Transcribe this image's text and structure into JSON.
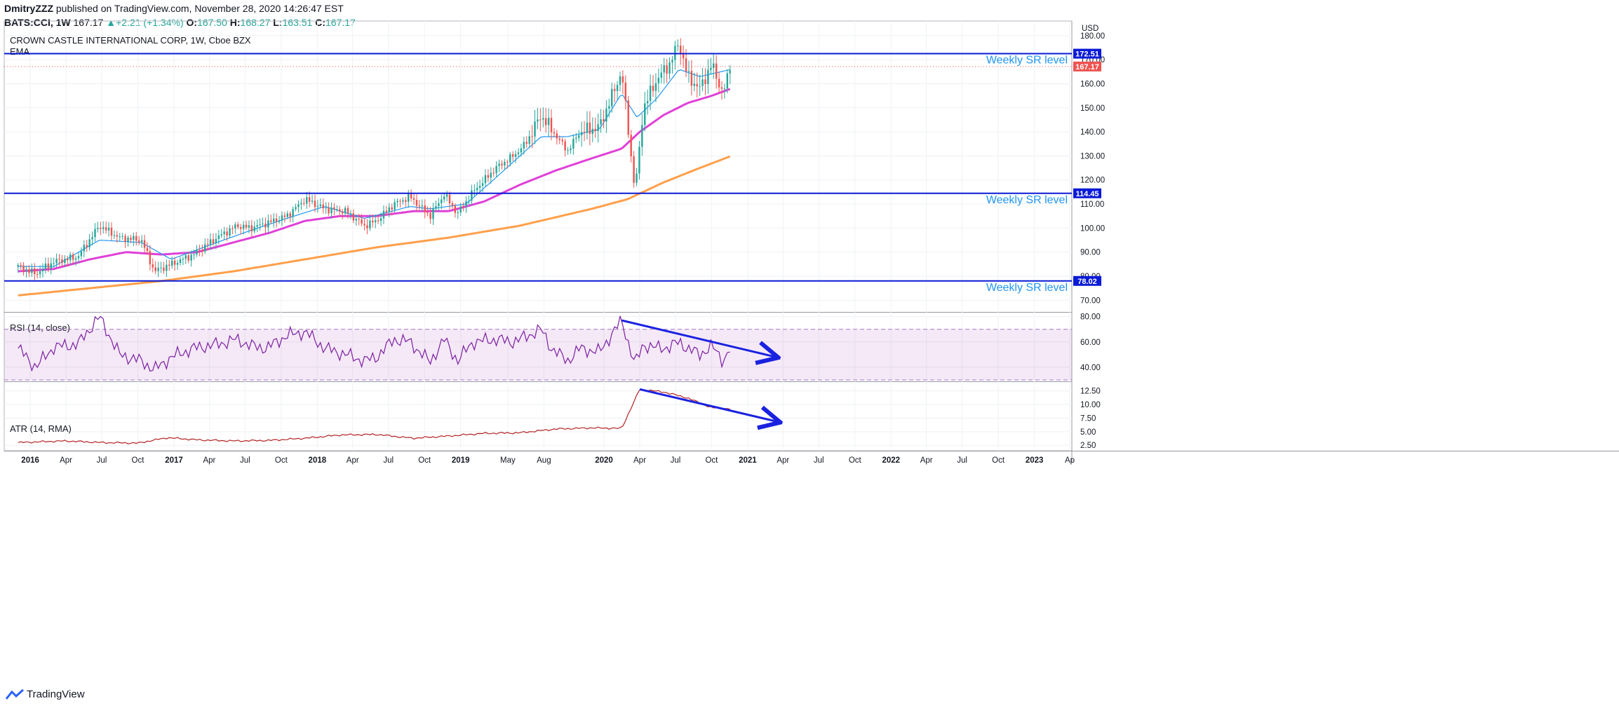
{
  "header": {
    "author": "DmitryZZZ",
    "published": "published on TradingView.com, November 28, 2020 14:26:47 EST",
    "symbol": "BATS:CCI, 1W",
    "last": "167.17",
    "change": "+2.21 (+1.34%)",
    "o_label": "O:",
    "o": "167.50",
    "h_label": "H:",
    "h": "168.27",
    "l_label": "L:",
    "l": "163.51",
    "c_label": "C:",
    "c": "167.17"
  },
  "footer": {
    "brand": "TradingView"
  },
  "colors": {
    "up": "#26a69a",
    "down": "#ef5350",
    "ema_fast": "#2196f3",
    "ema_mid": "#e040d8",
    "ema_slow": "#ff9f4a",
    "sr": "#0a1ad6",
    "rsi": "#7b1fa2",
    "atr": "#b22222",
    "arrow": "#1a22e0"
  },
  "chart_data": [
    {
      "type": "candlestick",
      "title": "CROWN CASTLE INTERNATIONAL CORP, 1W, Cboe BZX",
      "indicator_label": "EMA",
      "currency": "USD",
      "ylim": [
        66,
        182
      ],
      "y_ticks": [
        "70.00",
        "80.00",
        "90.00",
        "100.00",
        "110.00",
        "120.00",
        "130.00",
        "140.00",
        "150.00",
        "160.00",
        "170.00",
        "180.00"
      ],
      "x_ticks": [
        "2016",
        "Apr",
        "Jul",
        "Oct",
        "2017",
        "Apr",
        "Jul",
        "Oct",
        "2018",
        "Apr",
        "Jul",
        "Oct",
        "2019",
        "May",
        "Aug",
        "2020",
        "Apr",
        "Jul",
        "Oct",
        "2021",
        "Apr",
        "Jul",
        "Oct",
        "2022",
        "Apr",
        "Jul",
        "Oct",
        "2023",
        "Ap"
      ],
      "sr_levels": [
        {
          "value": 172.51,
          "label": "172.51",
          "text": "Weekly SR level"
        },
        {
          "value": 114.45,
          "label": "114.45",
          "text": "Weekly SR level"
        },
        {
          "value": 78.02,
          "label": "78.02",
          "text": "Weekly SR level"
        }
      ],
      "last_price": {
        "value": 167.17,
        "label": "167.17"
      },
      "close_anchors": [
        [
          "2015-12-01",
          84
        ],
        [
          "2016-01-15",
          81
        ],
        [
          "2016-03-01",
          86
        ],
        [
          "2016-05-01",
          88
        ],
        [
          "2016-06-25",
          101
        ],
        [
          "2016-08-15",
          96
        ],
        [
          "2016-10-10",
          95
        ],
        [
          "2016-11-12",
          82
        ],
        [
          "2016-12-25",
          85
        ],
        [
          "2017-02-20",
          89
        ],
        [
          "2017-04-20",
          96
        ],
        [
          "2017-06-10",
          101
        ],
        [
          "2017-07-15",
          100
        ],
        [
          "2017-08-25",
          102
        ],
        [
          "2017-10-15",
          105
        ],
        [
          "2017-12-01",
          112
        ],
        [
          "2018-01-20",
          108
        ],
        [
          "2018-03-15",
          107
        ],
        [
          "2018-05-01",
          101
        ],
        [
          "2018-06-01",
          103
        ],
        [
          "2018-07-15",
          110
        ],
        [
          "2018-08-25",
          113
        ],
        [
          "2018-10-15",
          105
        ],
        [
          "2018-11-20",
          114
        ],
        [
          "2018-12-24",
          106
        ],
        [
          "2019-02-01",
          115
        ],
        [
          "2019-04-01",
          125
        ],
        [
          "2019-05-15",
          130
        ],
        [
          "2019-06-15",
          135
        ],
        [
          "2019-07-25",
          147
        ],
        [
          "2019-08-20",
          141
        ],
        [
          "2019-09-30",
          132
        ],
        [
          "2019-11-01",
          140
        ],
        [
          "2019-12-20",
          142
        ],
        [
          "2020-02-15",
          165
        ],
        [
          "2020-03-20",
          115
        ],
        [
          "2020-04-10",
          150
        ],
        [
          "2020-05-15",
          162
        ],
        [
          "2020-06-15",
          168
        ],
        [
          "2020-07-10",
          177
        ],
        [
          "2020-08-01",
          163
        ],
        [
          "2020-09-01",
          158
        ],
        [
          "2020-10-01",
          168
        ],
        [
          "2020-10-30",
          156
        ],
        [
          "2020-11-20",
          167.17
        ]
      ],
      "ema_fast_anchors": [
        [
          "2015-12-01",
          84
        ],
        [
          "2016-03-01",
          84
        ],
        [
          "2016-06-25",
          95
        ],
        [
          "2016-10-10",
          94
        ],
        [
          "2016-12-25",
          87
        ],
        [
          "2017-04-20",
          94
        ],
        [
          "2017-07-15",
          99
        ],
        [
          "2017-10-15",
          104
        ],
        [
          "2018-01-20",
          109
        ],
        [
          "2018-05-01",
          104
        ],
        [
          "2018-08-25",
          109
        ],
        [
          "2018-10-15",
          108
        ],
        [
          "2019-01-15",
          110
        ],
        [
          "2019-04-01",
          121
        ],
        [
          "2019-07-25",
          138
        ],
        [
          "2019-09-30",
          138
        ],
        [
          "2019-12-20",
          141
        ],
        [
          "2020-02-15",
          156
        ],
        [
          "2020-03-25",
          146
        ],
        [
          "2020-05-15",
          154
        ],
        [
          "2020-07-10",
          166
        ],
        [
          "2020-09-01",
          163
        ],
        [
          "2020-11-20",
          166
        ]
      ],
      "ema_mid_anchors": [
        [
          "2015-12-01",
          82
        ],
        [
          "2016-03-01",
          83
        ],
        [
          "2016-06-01",
          87
        ],
        [
          "2016-09-01",
          90
        ],
        [
          "2016-12-01",
          89
        ],
        [
          "2017-03-01",
          90
        ],
        [
          "2017-06-01",
          94
        ],
        [
          "2017-09-01",
          98
        ],
        [
          "2017-12-01",
          103
        ],
        [
          "2018-03-01",
          105
        ],
        [
          "2018-06-01",
          105
        ],
        [
          "2018-09-01",
          107
        ],
        [
          "2018-12-01",
          107
        ],
        [
          "2019-03-01",
          111
        ],
        [
          "2019-06-01",
          118
        ],
        [
          "2019-09-01",
          124
        ],
        [
          "2019-12-01",
          129
        ],
        [
          "2020-02-15",
          133
        ],
        [
          "2020-04-01",
          140
        ],
        [
          "2020-06-01",
          147
        ],
        [
          "2020-08-01",
          152
        ],
        [
          "2020-10-01",
          155
        ],
        [
          "2020-11-20",
          158
        ]
      ],
      "ema_slow_anchors": [
        [
          "2015-12-01",
          72
        ],
        [
          "2016-06-01",
          75
        ],
        [
          "2016-12-01",
          78
        ],
        [
          "2017-06-01",
          82
        ],
        [
          "2017-12-01",
          87
        ],
        [
          "2018-06-01",
          92
        ],
        [
          "2018-12-01",
          96
        ],
        [
          "2019-06-01",
          101
        ],
        [
          "2019-12-01",
          108
        ],
        [
          "2020-03-01",
          112
        ],
        [
          "2020-06-01",
          119
        ],
        [
          "2020-09-01",
          125
        ],
        [
          "2020-11-20",
          130
        ]
      ]
    },
    {
      "type": "line",
      "title": "RSI (14, close)",
      "ylim": [
        30,
        82
      ],
      "y_ticks": [
        "40.00",
        "60.00",
        "80.00"
      ],
      "band": [
        30,
        70
      ],
      "anchors": [
        [
          "2015-12-01",
          55
        ],
        [
          "2016-01-15",
          40
        ],
        [
          "2016-03-01",
          56
        ],
        [
          "2016-05-01",
          58
        ],
        [
          "2016-06-25",
          80
        ],
        [
          "2016-08-15",
          50
        ],
        [
          "2016-10-10",
          45
        ],
        [
          "2016-11-12",
          38
        ],
        [
          "2016-12-25",
          48
        ],
        [
          "2017-02-20",
          55
        ],
        [
          "2017-04-20",
          58
        ],
        [
          "2017-06-10",
          62
        ],
        [
          "2017-07-15",
          57
        ],
        [
          "2017-08-25",
          55
        ],
        [
          "2017-10-15",
          65
        ],
        [
          "2017-12-01",
          68
        ],
        [
          "2018-01-20",
          55
        ],
        [
          "2018-03-15",
          50
        ],
        [
          "2018-05-01",
          45
        ],
        [
          "2018-06-01",
          48
        ],
        [
          "2018-07-15",
          62
        ],
        [
          "2018-08-25",
          60
        ],
        [
          "2018-10-15",
          44
        ],
        [
          "2018-11-20",
          62
        ],
        [
          "2018-12-24",
          45
        ],
        [
          "2019-02-01",
          60
        ],
        [
          "2019-04-01",
          62
        ],
        [
          "2019-05-15",
          60
        ],
        [
          "2019-06-15",
          64
        ],
        [
          "2019-07-25",
          70
        ],
        [
          "2019-08-20",
          55
        ],
        [
          "2019-09-30",
          45
        ],
        [
          "2019-11-01",
          55
        ],
        [
          "2019-12-20",
          52
        ],
        [
          "2020-02-15",
          77
        ],
        [
          "2020-03-20",
          42
        ],
        [
          "2020-04-10",
          58
        ],
        [
          "2020-05-15",
          55
        ],
        [
          "2020-06-15",
          56
        ],
        [
          "2020-07-10",
          60
        ],
        [
          "2020-08-01",
          55
        ],
        [
          "2020-09-01",
          50
        ],
        [
          "2020-10-01",
          57
        ],
        [
          "2020-10-30",
          45
        ],
        [
          "2020-11-20",
          56
        ]
      ],
      "trend_arrow": {
        "from": [
          "2020-02-15",
          77
        ],
        "to": [
          "2021-03-15",
          48
        ]
      }
    },
    {
      "type": "line",
      "title": "ATR (14, RMA)",
      "ylim": [
        1.5,
        14
      ],
      "y_ticks": [
        "2.50",
        "5.00",
        "7.50",
        "10.00",
        "12.50"
      ],
      "anchors": [
        [
          "2015-12-01",
          3.0
        ],
        [
          "2016-02-15",
          3.2
        ],
        [
          "2016-04-01",
          3.3
        ],
        [
          "2016-07-01",
          3.0
        ],
        [
          "2016-10-01",
          2.9
        ],
        [
          "2016-12-15",
          3.9
        ],
        [
          "2017-03-01",
          3.5
        ],
        [
          "2017-06-01",
          3.3
        ],
        [
          "2017-09-01",
          3.4
        ],
        [
          "2017-12-01",
          3.8
        ],
        [
          "2018-03-01",
          4.4
        ],
        [
          "2018-06-01",
          4.5
        ],
        [
          "2018-09-01",
          3.8
        ],
        [
          "2018-12-01",
          4.2
        ],
        [
          "2019-03-01",
          4.7
        ],
        [
          "2019-06-01",
          4.8
        ],
        [
          "2019-09-01",
          5.5
        ],
        [
          "2019-12-01",
          5.7
        ],
        [
          "2020-02-15",
          5.6
        ],
        [
          "2020-04-01",
          12.8
        ],
        [
          "2020-06-01",
          12.3
        ],
        [
          "2020-08-01",
          11.2
        ],
        [
          "2020-10-01",
          9.4
        ],
        [
          "2020-11-20",
          9.2
        ]
      ],
      "trend_arrow": {
        "from": [
          "2020-04-01",
          12.8
        ],
        "to": [
          "2021-03-20",
          6.8
        ]
      }
    }
  ]
}
